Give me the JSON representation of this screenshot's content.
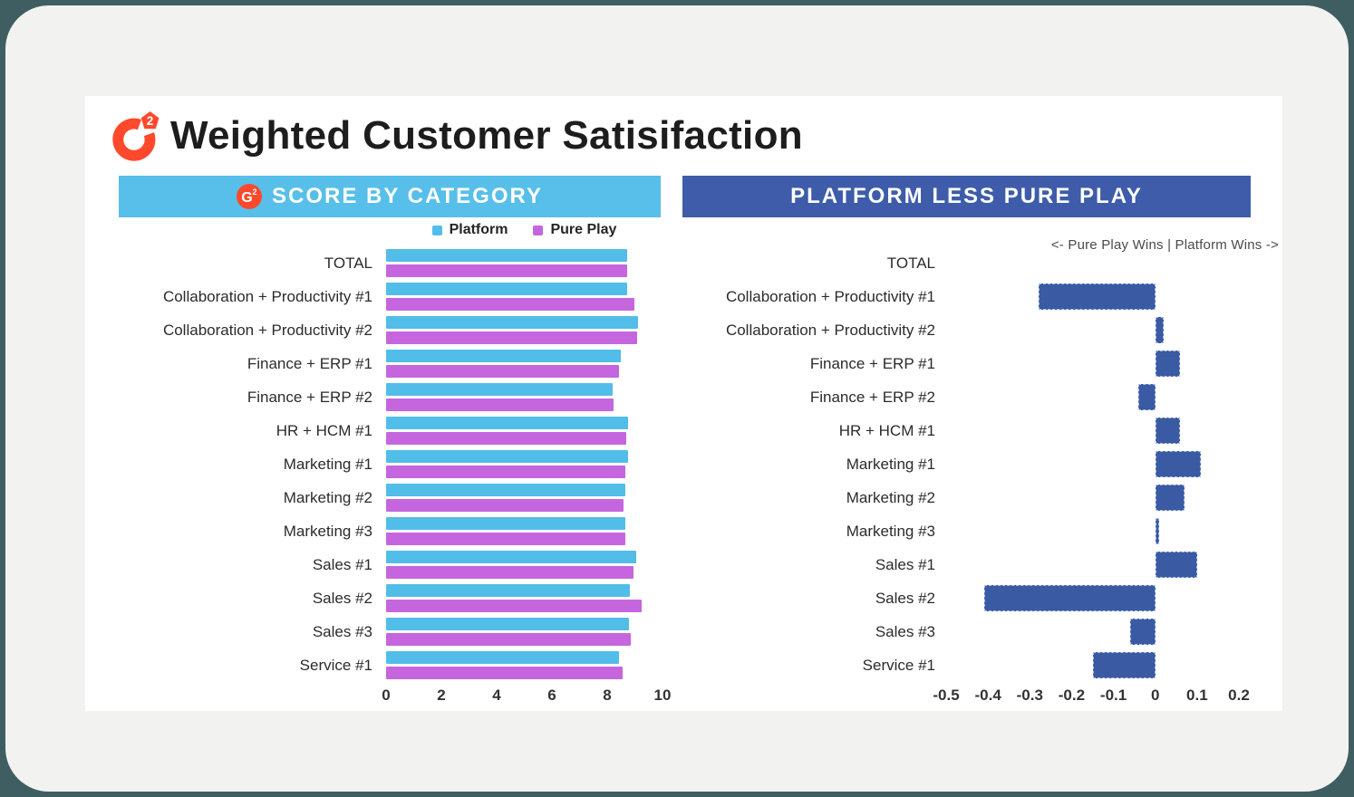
{
  "window": {
    "title": "Weighted Customer Satisifaction"
  },
  "colors": {
    "outer_background": "#3F5E61",
    "card_background": "#F2F3F1",
    "panel_background": "#FFFFFF",
    "brand_red": "#FF492C",
    "left_header_bg": "#57BFE9",
    "right_header_bg": "#3E5CA9",
    "platform_bar": "#52BDE8",
    "pureplay_bar": "#C566DF",
    "diff_bar": "#3A5BA4"
  },
  "left_panel": {
    "header": "SCORE BY CATEGORY"
  },
  "right_panel": {
    "header": "PLATFORM LESS PURE PLAY",
    "annotation": "<- Pure Play Wins | Platform Wins ->"
  },
  "chart_data": [
    {
      "type": "bar",
      "orientation": "horizontal",
      "title": "SCORE BY CATEGORY",
      "categories": [
        "TOTAL",
        "Collaboration + Productivity #1",
        "Collaboration + Productivity #2",
        "Finance + ERP #1",
        "Finance + ERP #2",
        "HR + HCM #1",
        "Marketing #1",
        "Marketing #2",
        "Marketing #3",
        "Sales #1",
        "Sales #2",
        "Sales #3",
        "Service #1"
      ],
      "series": [
        {
          "name": "Platform",
          "color": "#52BDE8",
          "values": [
            8.72,
            8.71,
            9.11,
            8.49,
            8.19,
            8.74,
            8.77,
            8.66,
            8.66,
            9.06,
            8.83,
            8.79,
            8.41
          ]
        },
        {
          "name": "Pure Play",
          "color": "#C566DF",
          "values": [
            8.72,
            8.99,
            9.09,
            8.43,
            8.23,
            8.68,
            8.66,
            8.59,
            8.65,
            8.96,
            9.24,
            8.85,
            8.56
          ]
        }
      ],
      "xlim": [
        0,
        10
      ],
      "xticks": [
        "0",
        "2",
        "4",
        "6",
        "8",
        "10"
      ],
      "legend_position": "top",
      "grid": false
    },
    {
      "type": "bar",
      "orientation": "horizontal",
      "title": "PLATFORM LESS PURE PLAY",
      "annotation": "<- Pure Play Wins | Platform Wins ->",
      "categories": [
        "TOTAL",
        "Collaboration + Productivity #1",
        "Collaboration + Productivity #2",
        "Finance + ERP #1",
        "Finance + ERP #2",
        "HR + HCM #1",
        "Marketing #1",
        "Marketing #2",
        "Marketing #3",
        "Sales #1",
        "Sales #2",
        "Sales #3",
        "Service #1"
      ],
      "values": [
        0.0,
        -0.28,
        0.02,
        0.06,
        -0.04,
        0.06,
        0.11,
        0.07,
        0.01,
        0.1,
        -0.41,
        -0.06,
        -0.15
      ],
      "bar_color": "#3A5BA4",
      "xlim": [
        -0.5,
        0.2
      ],
      "xticks": [
        "-0.5",
        "-0.4",
        "-0.3",
        "-0.2",
        "-0.1",
        "0",
        "0.1",
        "0.2"
      ],
      "grid": false
    }
  ]
}
